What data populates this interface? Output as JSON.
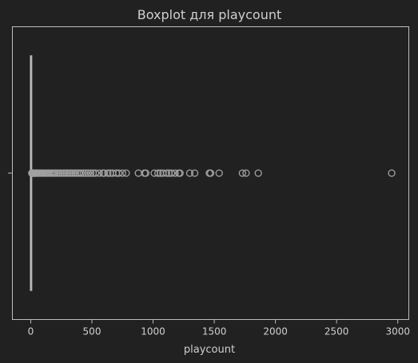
{
  "chart_data": {
    "type": "box",
    "title": "Boxplot для playcount",
    "xlabel": "playcount",
    "ylabel": "",
    "xlim": [
      -150,
      3090
    ],
    "xticks": [
      0,
      500,
      1000,
      1500,
      2000,
      2500,
      3000
    ],
    "grid": false,
    "colors": {
      "background": "#212121",
      "axes": "#bdbdbd",
      "text": "#cfcfcf",
      "box": "#a8a8a8",
      "outlier_stroke": "#a0a0a0"
    },
    "box": {
      "whisker_low": 0,
      "q1": 1,
      "median": 2,
      "q3": 4,
      "whisker_high": 8
    },
    "outliers": [
      9,
      10,
      12,
      14,
      16,
      18,
      20,
      23,
      26,
      30,
      34,
      38,
      42,
      47,
      52,
      58,
      64,
      70,
      77,
      84,
      92,
      100,
      110,
      120,
      130,
      140,
      150,
      162,
      175,
      188,
      200,
      215,
      230,
      245,
      260,
      275,
      290,
      305,
      320,
      335,
      350,
      365,
      380,
      395,
      410,
      430,
      450,
      470,
      490,
      510,
      530,
      560,
      590,
      600,
      630,
      650,
      670,
      700,
      720,
      750,
      780,
      880,
      930,
      940,
      1010,
      1040,
      1060,
      1080,
      1110,
      1130,
      1150,
      1180,
      1210,
      1220,
      1300,
      1340,
      1460,
      1470,
      1540,
      1730,
      1760,
      1860,
      2950
    ]
  }
}
